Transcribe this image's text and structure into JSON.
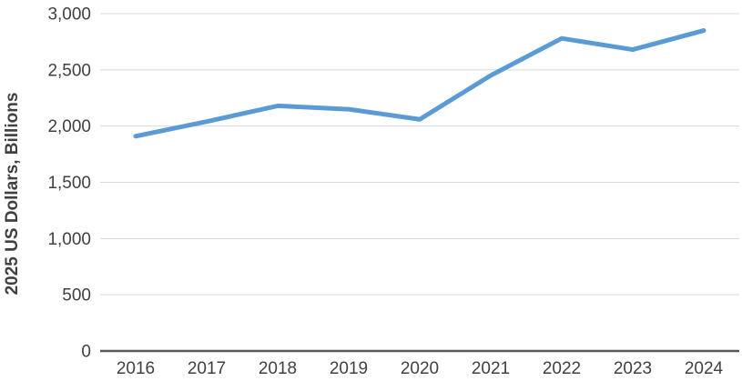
{
  "chart_data": {
    "type": "line",
    "title": "",
    "xlabel": "",
    "ylabel": "2025 US Dollars, Billions",
    "categories": [
      "2016",
      "2017",
      "2018",
      "2019",
      "2020",
      "2021",
      "2022",
      "2023",
      "2024"
    ],
    "series": [
      {
        "name": "",
        "values": [
          1910,
          2040,
          2180,
          2150,
          2060,
          2450,
          2780,
          2680,
          2850
        ]
      }
    ],
    "yticks": {
      "values": [
        0,
        500,
        1000,
        1500,
        2000,
        2500,
        3000
      ],
      "labels": [
        "0",
        "500",
        "1,000",
        "1,500",
        "2,000",
        "2,500",
        "3,000"
      ]
    },
    "ylim": [
      0,
      3000
    ],
    "grid": true,
    "legend": "none",
    "colors": {
      "line": "#5B9BD5",
      "grid": "#D8D8D8",
      "axis": "#595959",
      "text": "#404040"
    }
  }
}
